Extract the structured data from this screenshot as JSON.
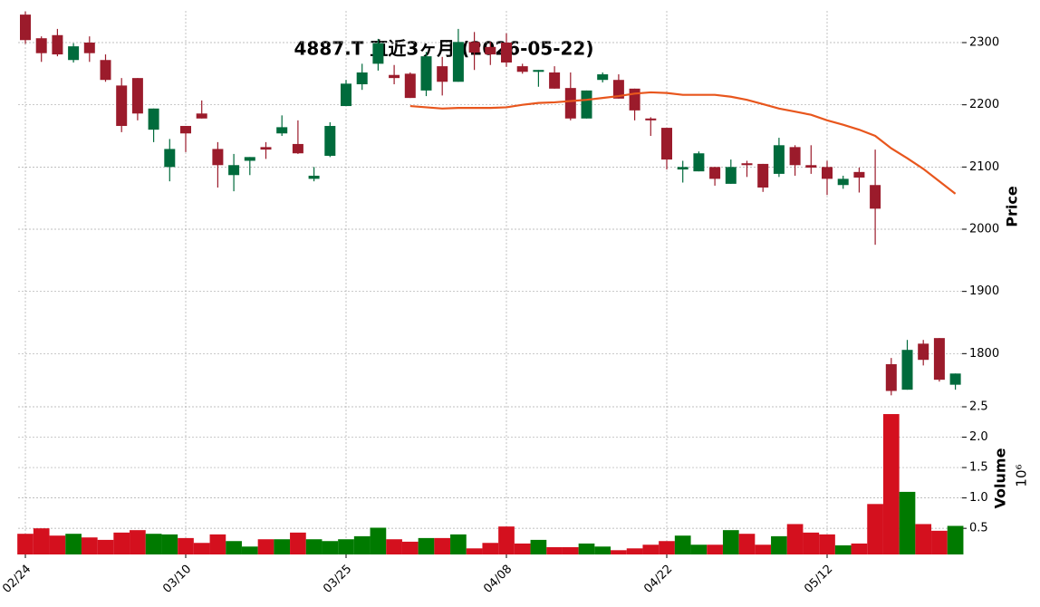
{
  "chart_data": {
    "type": "candlestick",
    "title": "4887.T 直近3ヶ月 (2026-05-22)",
    "y_label": "Price",
    "y2_label": "Volume",
    "y2_scale_label": "10⁶",
    "categories": [
      "02/24",
      null,
      null,
      null,
      null,
      null,
      null,
      null,
      null,
      null,
      "03/10",
      null,
      null,
      null,
      null,
      null,
      null,
      null,
      null,
      null,
      "03/25",
      null,
      null,
      null,
      null,
      null,
      null,
      null,
      null,
      null,
      "04/08",
      null,
      null,
      null,
      null,
      null,
      null,
      null,
      null,
      null,
      "04/22",
      null,
      null,
      null,
      null,
      null,
      null,
      null,
      null,
      null,
      "05/12",
      null,
      null,
      null,
      null,
      null,
      null,
      null,
      null
    ],
    "open": [
      2345,
      2307,
      2312,
      2272,
      2300,
      2272,
      2231,
      2243,
      2160,
      2100,
      2166,
      2186,
      2129,
      2087,
      2110,
      2132,
      2154,
      2137,
      2081,
      2118,
      2198,
      2233,
      2266,
      2248,
      2250,
      2223,
      2262,
      2237,
      2301,
      2293,
      2300,
      2262,
      2253,
      2252,
      2227,
      2178,
      2240,
      2240,
      2226,
      2178,
      2163,
      2096,
      2093,
      2100,
      2073,
      2106,
      2105,
      2089,
      2132,
      2103,
      2100,
      2071,
      2092,
      2071,
      1783,
      1742,
      1816,
      1825,
      1750
    ],
    "high": [
      2350,
      2310,
      2322,
      2299,
      2310,
      2281,
      2243,
      2243,
      2194,
      2145,
      2166,
      2207,
      2140,
      2121,
      2116,
      2140,
      2183,
      2175,
      2100,
      2172,
      2240,
      2266,
      2306,
      2264,
      2252,
      2285,
      2277,
      2322,
      2317,
      2301,
      2315,
      2266,
      2256,
      2262,
      2252,
      2223,
      2252,
      2249,
      2226,
      2180,
      2163,
      2110,
      2125,
      2100,
      2112,
      2110,
      2105,
      2147,
      2135,
      2135,
      2110,
      2086,
      2099,
      2128,
      1793,
      1822,
      1822,
      1825,
      1768
    ],
    "low": [
      2298,
      2269,
      2278,
      2268,
      2269,
      2237,
      2156,
      2175,
      2140,
      2077,
      2124,
      2178,
      2067,
      2061,
      2087,
      2113,
      2150,
      2121,
      2077,
      2116,
      2198,
      2224,
      2255,
      2233,
      2211,
      2214,
      2215,
      2237,
      2256,
      2264,
      2261,
      2250,
      2229,
      2226,
      2175,
      2178,
      2236,
      2210,
      2175,
      2150,
      2096,
      2075,
      2093,
      2070,
      2073,
      2084,
      2060,
      2084,
      2086,
      2089,
      2055,
      2065,
      2059,
      1975,
      1733,
      1742,
      1781,
      1755,
      1742
    ],
    "close": [
      2304,
      2283,
      2281,
      2294,
      2283,
      2240,
      2166,
      2186,
      2194,
      2129,
      2154,
      2178,
      2103,
      2103,
      2116,
      2128,
      2164,
      2122,
      2086,
      2166,
      2234,
      2252,
      2299,
      2243,
      2211,
      2278,
      2237,
      2301,
      2284,
      2281,
      2268,
      2253,
      2256,
      2226,
      2178,
      2223,
      2249,
      2210,
      2191,
      2175,
      2112,
      2100,
      2122,
      2081,
      2100,
      2103,
      2067,
      2135,
      2103,
      2099,
      2081,
      2081,
      2083,
      2033,
      1740,
      1806,
      1790,
      1758,
      1768
    ],
    "volume": [
      0.41,
      0.5,
      0.38,
      0.41,
      0.35,
      0.31,
      0.43,
      0.47,
      0.41,
      0.4,
      0.34,
      0.26,
      0.4,
      0.29,
      0.2,
      0.32,
      0.32,
      0.43,
      0.32,
      0.29,
      0.32,
      0.37,
      0.51,
      0.32,
      0.28,
      0.34,
      0.34,
      0.4,
      0.17,
      0.26,
      0.53,
      0.25,
      0.31,
      0.19,
      0.19,
      0.25,
      0.2,
      0.14,
      0.17,
      0.23,
      0.29,
      0.38,
      0.23,
      0.23,
      0.47,
      0.41,
      0.23,
      0.37,
      0.57,
      0.43,
      0.4,
      0.22,
      0.25,
      0.9,
      2.38,
      1.1,
      0.57,
      0.46,
      0.54
    ],
    "ma": {
      "color": "#e8561d",
      "values": [
        null,
        null,
        null,
        null,
        null,
        null,
        null,
        null,
        null,
        null,
        null,
        null,
        null,
        null,
        null,
        null,
        null,
        null,
        null,
        null,
        null,
        null,
        null,
        null,
        2198,
        2196,
        2194,
        2195,
        2195,
        2195,
        2196,
        2200,
        2203,
        2204,
        2206,
        2208,
        2211,
        2214,
        2218,
        2220,
        2219,
        2216,
        2216,
        2216,
        2213,
        2208,
        2201,
        2194,
        2189,
        2184,
        2175,
        2168,
        2160,
        2150,
        2130,
        2114,
        2097,
        2077,
        2057
      ]
    },
    "up_color": "#006b3c",
    "down_color": "#9b1b2b",
    "volume_up_color": "#007a00",
    "volume_down_color": "#d4101e",
    "ylim": [
      1716,
      2351
    ],
    "yticks": [
      1800,
      1900,
      2000,
      2100,
      2200,
      2300
    ],
    "y2lim": [
      0.07,
      2.5
    ],
    "y2ticks": [
      0.5,
      {
        "value": 1.0,
        "label": "1.0"
      },
      1.5,
      {
        "value": 2.0,
        "label": "2.0"
      },
      2.5
    ],
    "grid": true
  }
}
